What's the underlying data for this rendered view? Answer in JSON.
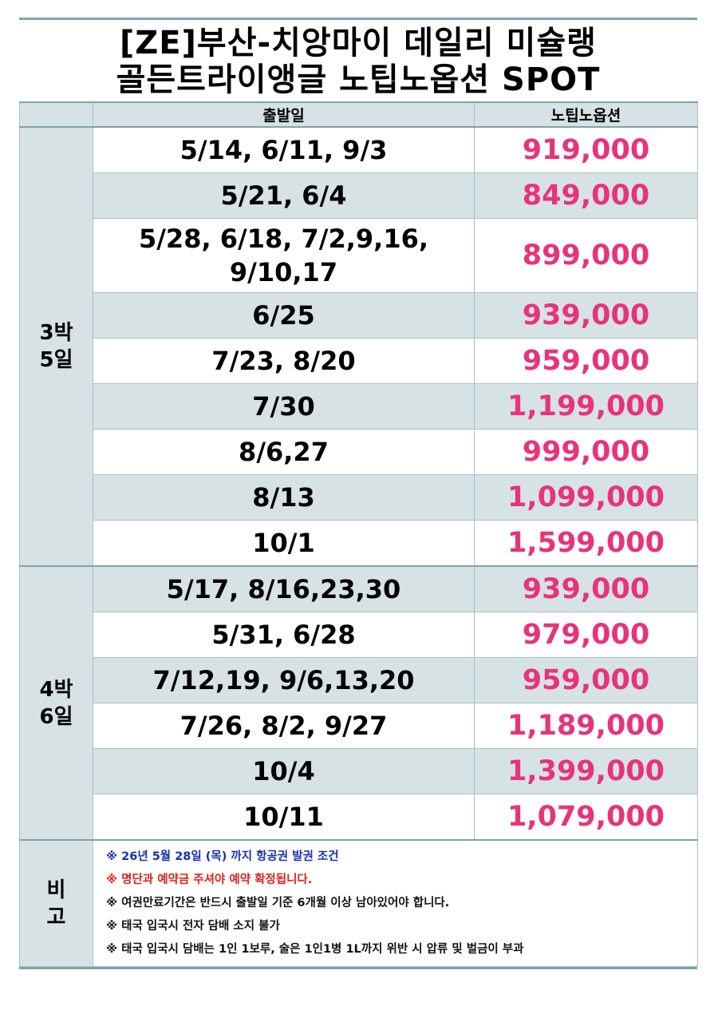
{
  "title": {
    "line1": "[ZE]부산-치앙마이 데일리 미슐랭",
    "line2": "골든트라이앵글 노팁노옵션 SPOT"
  },
  "headers": {
    "date": "출발일",
    "price": "노팁노옵션"
  },
  "groups": [
    {
      "label_line1": "3박",
      "label_line2": "5일",
      "rows": [
        {
          "date_line1": "5/14, 6/11, 9/3",
          "price": "919,000"
        },
        {
          "date_line1": "5/21, 6/4",
          "price": "849,000"
        },
        {
          "date_line1": "5/28, 6/18, 7/2,9,16,",
          "date_line2": "9/10,17",
          "price": "899,000"
        },
        {
          "date_line1": "6/25",
          "price": "939,000"
        },
        {
          "date_line1": "7/23, 8/20",
          "price": "959,000"
        },
        {
          "date_line1": "7/30",
          "price": "1,199,000"
        },
        {
          "date_line1": "8/6,27",
          "price": "999,000"
        },
        {
          "date_line1": "8/13",
          "price": "1,099,000"
        },
        {
          "date_line1": "10/1",
          "price": "1,599,000"
        }
      ]
    },
    {
      "label_line1": "4박",
      "label_line2": "6일",
      "rows": [
        {
          "date_line1": "5/17, 8/16,23,30",
          "price": "939,000"
        },
        {
          "date_line1": "5/31, 6/28",
          "price": "979,000"
        },
        {
          "date_line1": "7/12,19, 9/6,13,20",
          "price": "959,000"
        },
        {
          "date_line1": "7/26, 8/2, 9/27",
          "price": "1,189,000"
        },
        {
          "date_line1": "10/4",
          "price": "1,399,000"
        },
        {
          "date_line1": "10/11",
          "price": "1,079,000"
        }
      ]
    }
  ],
  "notes": {
    "label_line1": "비",
    "label_line2": "고",
    "items": [
      {
        "text": "※ 26년 5월 28일 (목) 까지 항공권 발권 조건",
        "color": "#1a2fb0"
      },
      {
        "text": "※ 명단과 예약금 주셔야 예약 확정됩니다.",
        "color": "#e0201a"
      },
      {
        "text": "※ 여권만료기간은 반드시 출발일 기준 6개월 이상 남아있어야 합니다.",
        "color": "#111111"
      },
      {
        "text": "※ 태국 입국시 전자 담배 소지 불가",
        "color": "#111111"
      },
      {
        "text": "※ 태국 입국시 담배는 1인 1보루, 술은 1인1병 1L까지  위반 시 압류 및 벌금이 부과",
        "color": "#111111"
      }
    ]
  },
  "colors": {
    "price": "#e8337b",
    "band": "#d6e2e4",
    "rule": "#7fa3aa"
  }
}
